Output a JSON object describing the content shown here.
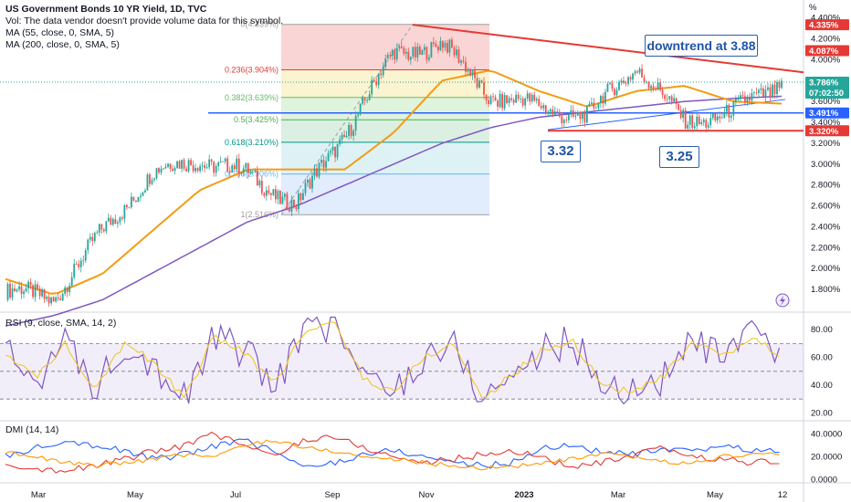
{
  "legend": {
    "title": "US Government Bonds 10 YR Yield, 1D, TVC",
    "vol": "Vol: The data vendor doesn't provide volume data for this symbol.",
    "ma55": "MA (55, close, 0, SMA, 5)",
    "ma200": "MA (200, close, 0, SMA, 5)",
    "rsi": "RSI (9, close, SMA, 14, 2)",
    "dmi": "DMI (14, 14)"
  },
  "colors": {
    "up": "#26a69a",
    "down": "#ef5350",
    "ma55": "#f39c12",
    "ma200": "#7e57c2",
    "blue_line": "#2962ff",
    "red_line": "#e53935",
    "rsi": "#7e57c2",
    "rsi_ma": "#f0c419",
    "di_plus": "#2962ff",
    "di_minus": "#e53935",
    "adx": "#ff9800"
  },
  "annotations": {
    "downtrend": "downtrend at 3.88",
    "low1": "3.32",
    "low2": "3.25"
  },
  "chart_data": [
    {
      "type": "line",
      "title": "US Government Bonds 10 YR Yield, 1D, TVC",
      "x_ticks": [
        "Mar",
        "May",
        "Jul",
        "Sep",
        "Nov",
        "2023",
        "Mar",
        "May",
        "12"
      ],
      "y_ticks": [
        "1.800%",
        "2.000%",
        "2.200%",
        "2.400%",
        "2.600%",
        "2.800%",
        "3.000%",
        "3.200%",
        "3.400%",
        "3.600%",
        "3.800%",
        "4.000%",
        "4.200%",
        "4.400%"
      ],
      "ylim": [
        1.6,
        4.45
      ],
      "yunit": "%",
      "series": [
        {
          "name": "US Government Bonds 10 YR Yield",
          "x": [
            "Feb 2022",
            "Mar 2022",
            "Apr 2022",
            "May 2022",
            "Jun 2022",
            "Jul 2022",
            "Aug 2022",
            "Sep 2022",
            "Oct 2022",
            "Nov 2022",
            "Dec 2022",
            "Jan 2023",
            "Feb 2023",
            "Mar 2023",
            "Apr 2023",
            "May 2023",
            "Jun 2023"
          ],
          "values": [
            1.78,
            1.72,
            2.35,
            2.9,
            3.05,
            2.9,
            2.6,
            3.3,
            4.05,
            4.15,
            3.65,
            3.55,
            3.45,
            3.95,
            3.4,
            3.5,
            3.786
          ]
        },
        {
          "name": "MA (55, close, 0, SMA, 5)",
          "values": [
            1.9,
            1.75,
            1.95,
            2.35,
            2.75,
            2.95,
            2.95,
            2.95,
            3.3,
            3.8,
            3.9,
            3.7,
            3.55,
            3.7,
            3.75,
            3.6,
            3.58
          ]
        },
        {
          "name": "MA (200, close, 0, SMA, 5)",
          "values": [
            1.45,
            1.55,
            1.7,
            1.95,
            2.2,
            2.45,
            2.6,
            2.8,
            3.0,
            3.2,
            3.35,
            3.45,
            3.5,
            3.55,
            3.6,
            3.63,
            3.65
          ]
        }
      ],
      "fibonacci": [
        {
          "label": "0(4.339%)",
          "level": 4.339
        },
        {
          "label": "0.236(3.904%)",
          "level": 3.904
        },
        {
          "label": "0.382(3.639%)",
          "level": 3.639
        },
        {
          "label": "0.5(3.425%)",
          "level": 3.425
        },
        {
          "label": "0.618(3.210%)",
          "level": 3.21
        },
        {
          "label": "0.786(2.906%)",
          "level": 2.906
        },
        {
          "label": "1(2.516%)",
          "level": 2.516
        }
      ],
      "price_tags": [
        {
          "label": "4.335%",
          "value": 4.335,
          "color": "#e53935"
        },
        {
          "label": "4.087%",
          "value": 4.087,
          "color": "#e53935"
        },
        {
          "label": "3.786%",
          "value": 3.786,
          "color": "#26a69a",
          "sub": "07:02:50"
        },
        {
          "label": "3.491%",
          "value": 3.491,
          "color": "#2962ff"
        },
        {
          "label": "3.320%",
          "value": 3.32,
          "color": "#e53935"
        }
      ],
      "lines": {
        "support": 3.491,
        "floor": 3.32,
        "downtrend_start": 4.335,
        "downtrend_end": 3.88
      }
    },
    {
      "type": "line",
      "title": "RSI (9, close, SMA, 14, 2)",
      "y_ticks": [
        "20.00",
        "40.00",
        "60.00",
        "80.00"
      ],
      "ylim": [
        15,
        90
      ],
      "bands": [
        30,
        50,
        70
      ],
      "series": [
        {
          "name": "RSI",
          "values": [
            62,
            45,
            70,
            38,
            72,
            55,
            30,
            75,
            64,
            40,
            78,
            85,
            45,
            35,
            60,
            70,
            30,
            48,
            65,
            72,
            40,
            35,
            45,
            70,
            60,
            74,
            62
          ]
        }
      ]
    },
    {
      "type": "line",
      "title": "DMI (14, 14)",
      "y_ticks": [
        "0.0000",
        "20.0000",
        "40.0000"
      ],
      "ylim": [
        -2,
        50
      ],
      "series": [
        {
          "name": "+DI",
          "values": [
            20,
            28,
            35,
            30,
            25,
            18,
            22,
            30,
            34,
            25,
            10,
            15,
            22,
            26,
            20,
            16,
            12,
            15,
            28,
            30,
            24,
            22,
            26,
            24,
            30,
            26,
            24
          ]
        },
        {
          "name": "-DI",
          "values": [
            15,
            10,
            8,
            12,
            18,
            25,
            30,
            40,
            30,
            20,
            35,
            38,
            28,
            20,
            15,
            18,
            22,
            25,
            20,
            10,
            15,
            20,
            28,
            20,
            18,
            15,
            16
          ]
        },
        {
          "name": "ADX",
          "values": [
            25,
            20,
            15,
            12,
            15,
            18,
            22,
            20,
            30,
            35,
            28,
            25,
            20,
            18,
            15,
            12,
            10,
            12,
            14,
            18,
            22,
            20,
            16,
            14,
            20,
            22,
            23
          ]
        }
      ]
    }
  ]
}
